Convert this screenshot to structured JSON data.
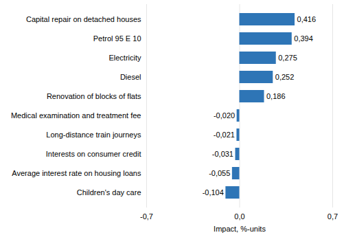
{
  "chart_data": {
    "type": "bar",
    "orientation": "horizontal",
    "categories": [
      "Capital repair on detached houses",
      "Petrol 95 E 10",
      "Electricity",
      "Diesel",
      "Renovation of blocks of flats",
      "Medical examination and treatment fee",
      "Long-distance train journeys",
      "Interests on consumer credit",
      "Average interest rate on housing loans",
      "Children's day care"
    ],
    "values": [
      0.416,
      0.394,
      0.275,
      0.252,
      0.186,
      -0.02,
      -0.021,
      -0.031,
      -0.055,
      -0.104
    ],
    "value_labels": [
      "0,416",
      "0,394",
      "0,275",
      "0,252",
      "0,186",
      "-0,020",
      "-0,021",
      "-0,031",
      "-0,055",
      "-0,104"
    ],
    "data_labels": true,
    "color": "#2e75b6",
    "x_label": "Impact, %-units",
    "xlim": [
      -0.7,
      0.7
    ],
    "xticks": [
      {
        "value": -0.7,
        "label": "-0,7"
      },
      {
        "value": 0,
        "label": "0,0"
      },
      {
        "value": 0.7,
        "label": "0,7"
      }
    ],
    "grid": true
  }
}
